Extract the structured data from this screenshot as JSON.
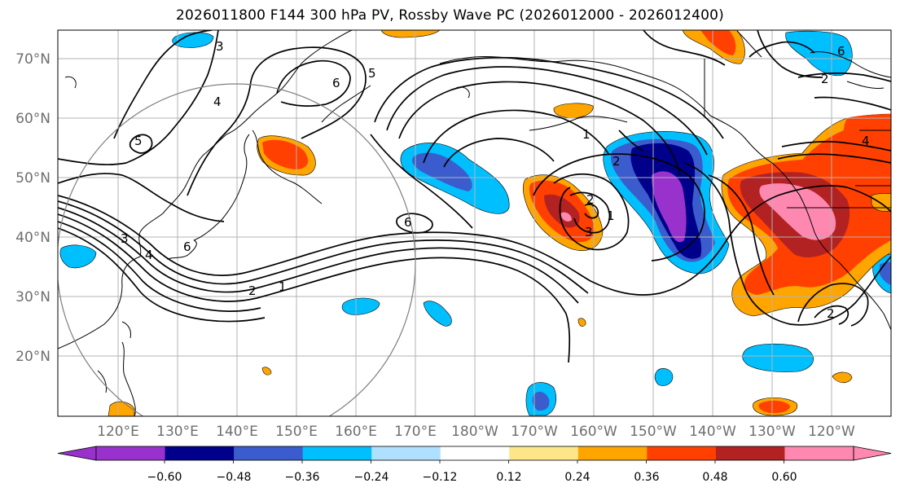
{
  "title": "2026011800 F144 300 hPa PV, Rossby Wave PC (2026012000 - 2026012400)",
  "lat_labels": [
    "70°N",
    "60°N",
    "50°N",
    "40°N",
    "30°N",
    "20°N"
  ],
  "lon_labels": [
    "120°E",
    "130°E",
    "140°E",
    "150°E",
    "160°E",
    "170°E",
    "180°W",
    "170°W",
    "160°W",
    "150°W",
    "140°W",
    "130°W",
    "120°W"
  ],
  "contour_labels": [
    "3",
    "4",
    "5",
    "6",
    "5",
    "6",
    "1",
    "2",
    "4",
    "3",
    "1",
    "2",
    "2",
    "1",
    "6",
    "3",
    "4",
    "2",
    "2",
    "6"
  ],
  "colorbar": {
    "tick_labels": [
      "−0.60",
      "−0.48",
      "−0.36",
      "−0.24",
      "−0.12",
      "0.12",
      "0.24",
      "0.36",
      "0.48",
      "0.60"
    ],
    "colors": [
      "#9932cc",
      "#00008b",
      "#3a5ccc",
      "#00bfff",
      "#b0e0ff",
      "#ffffff",
      "#fde68a",
      "#ffa500",
      "#ff4000",
      "#b22222",
      "#ff88b0",
      "#ff88b0"
    ]
  }
}
